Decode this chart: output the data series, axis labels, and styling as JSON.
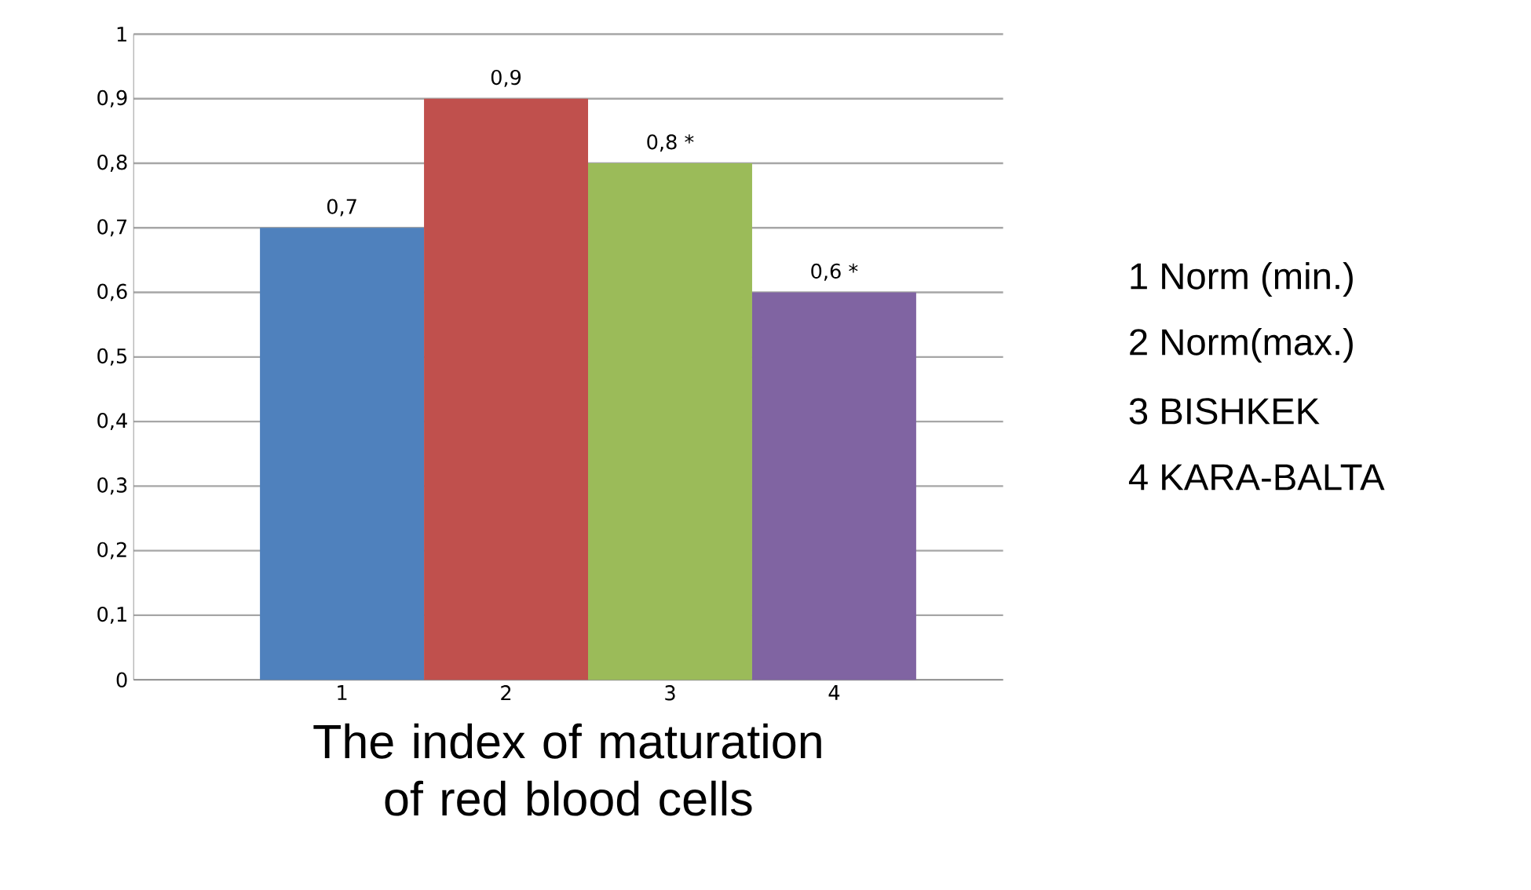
{
  "chart_data": {
    "type": "bar",
    "xlabel": "The index of maturation of red blood cells",
    "categories": [
      "1",
      "2",
      "3",
      "4"
    ],
    "values": [
      0.7,
      0.9,
      0.8,
      0.6
    ],
    "colors": [
      "#4f81bd",
      "#c0504d",
      "#9bbb59",
      "#8064a2"
    ],
    "value_labels": [
      "0,7",
      "0,9",
      "0,8 *",
      "0,6 *"
    ],
    "ylim": [
      0,
      1
    ],
    "yticks": [
      0,
      {
        "value": 0.1,
        "label": "0,1"
      },
      {
        "value": 0.2,
        "label": "0,2"
      },
      {
        "value": 0.3,
        "label": "0,3"
      },
      {
        "value": 0.4,
        "label": "0,4"
      },
      {
        "value": 0.5,
        "label": "0,5"
      },
      {
        "value": 0.6,
        "label": "0,6"
      },
      {
        "value": 0.7,
        "label": "0,7"
      },
      {
        "value": 0.8,
        "label": "0,8"
      },
      {
        "value": 0.9,
        "label": "0,9"
      },
      1
    ],
    "grid": "y",
    "annotations": [
      "1  Norm (min.)",
      "2  Norm(max.)",
      "3  BISHKEK",
      "4  KARA-BALTA"
    ]
  }
}
